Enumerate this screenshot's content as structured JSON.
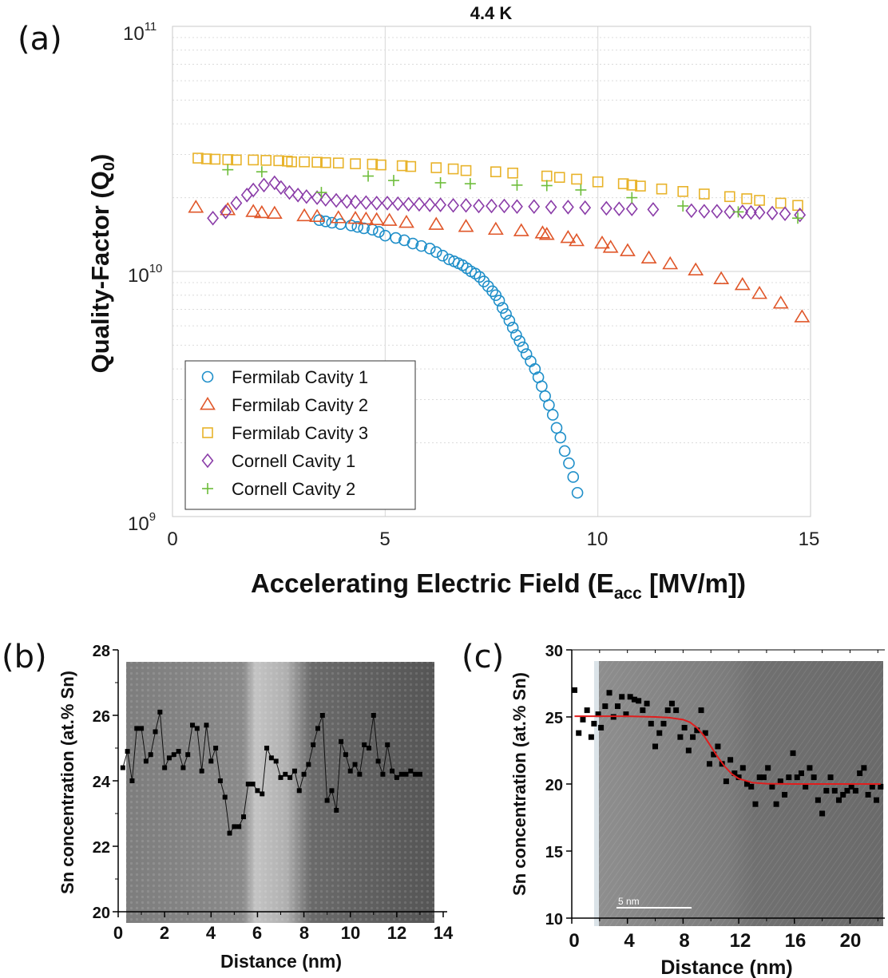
{
  "panel_labels": {
    "a": "(a)",
    "b": "(b)",
    "c": "(c)"
  },
  "colors": {
    "fermilab_1": "#1f8fc9",
    "fermilab_2": "#e0572a",
    "fermilab_3": "#e8b32a",
    "cornell_1": "#8a3ca8",
    "cornell_2": "#6dbd3a",
    "fit_line": "#e11d1d",
    "markers_bc": "#000000"
  },
  "chart_data": [
    {
      "id": "a",
      "type": "scatter",
      "title": "4.4 K",
      "xlabel": "Accelerating Electric Field (E",
      "xlabel_sub": "acc",
      "xlabel_tail": " [MV/m])",
      "ylabel": "Quality-Factor (Q",
      "ylabel_sub": "0",
      "ylabel_tail": ")",
      "xlim": [
        0,
        15
      ],
      "ylim": [
        1000000000.0,
        100000000000.0
      ],
      "yscale": "log",
      "grid": true,
      "x_ticks": [
        "0",
        "5",
        "10",
        "15"
      ],
      "y_ticks": [
        {
          "base": "10",
          "exp": "9"
        },
        {
          "base": "10",
          "exp": "10"
        },
        {
          "base": "10",
          "exp": "11"
        }
      ],
      "legend_position": "bottom-left",
      "series": [
        {
          "name": "Fermilab Cavity 1",
          "marker": "circle",
          "color_key": "fermilab_1",
          "x": [
            3.45,
            3.6,
            3.75,
            3.95,
            4.2,
            4.35,
            4.5,
            4.7,
            4.85,
            5.0,
            5.25,
            5.45,
            5.65,
            5.85,
            6.05,
            6.2,
            6.35,
            6.5,
            6.62,
            6.72,
            6.82,
            6.92,
            7.02,
            7.12,
            7.22,
            7.32,
            7.42,
            7.52,
            7.6,
            7.68,
            7.76,
            7.84,
            7.92,
            8.0,
            8.08,
            8.16,
            8.24,
            8.32,
            8.42,
            8.52,
            8.6,
            8.68,
            8.76,
            8.85,
            8.94,
            9.03,
            9.12,
            9.22,
            9.32,
            9.42,
            9.52
          ],
          "y": [
            16200000000.0,
            16000000000.0,
            15800000000.0,
            15600000000.0,
            15400000000.0,
            15200000000.0,
            15000000000.0,
            14800000000.0,
            14500000000.0,
            14000000000.0,
            13700000000.0,
            13400000000.0,
            13000000000.0,
            12700000000.0,
            12400000000.0,
            12000000000.0,
            11600000000.0,
            11200000000.0,
            11000000000.0,
            10800000000.0,
            10600000000.0,
            10300000000.0,
            10000000000.0,
            9800000000.0,
            9500000000.0,
            9100000000.0,
            8700000000.0,
            8300000000.0,
            8000000000.0,
            7600000000.0,
            7100000000.0,
            6700000000.0,
            6300000000.0,
            5900000000.0,
            5500000000.0,
            5200000000.0,
            4900000000.0,
            4600000000.0,
            4300000000.0,
            4000000000.0,
            3700000000.0,
            3400000000.0,
            3100000000.0,
            2850000000.0,
            2600000000.0,
            2300000000.0,
            2100000000.0,
            1850000000.0,
            1650000000.0,
            1450000000.0,
            1250000000.0
          ]
        },
        {
          "name": "Fermilab Cavity 2",
          "marker": "triangle",
          "color_key": "fermilab_2",
          "x": [
            0.55,
            1.3,
            1.9,
            2.1,
            2.4,
            3.1,
            3.4,
            3.9,
            4.3,
            4.55,
            4.8,
            5.1,
            5.5,
            6.2,
            6.9,
            7.6,
            8.2,
            8.7,
            8.8,
            9.3,
            9.5,
            10.1,
            10.3,
            10.7,
            11.2,
            11.7,
            12.3,
            12.9,
            13.4,
            13.8,
            14.3,
            14.8
          ],
          "y": [
            18200000000.0,
            17800000000.0,
            17500000000.0,
            17300000000.0,
            17200000000.0,
            16800000000.0,
            16700000000.0,
            16500000000.0,
            16400000000.0,
            16300000000.0,
            16200000000.0,
            16100000000.0,
            15800000000.0,
            15500000000.0,
            15200000000.0,
            14800000000.0,
            14600000000.0,
            14300000000.0,
            14100000000.0,
            13700000000.0,
            13300000000.0,
            13000000000.0,
            12500000000.0,
            12100000000.0,
            11300000000.0,
            10700000000.0,
            10100000000.0,
            9300000000.0,
            8800000000.0,
            8100000000.0,
            7400000000.0,
            6500000000.0
          ]
        },
        {
          "name": "Fermilab Cavity 3",
          "marker": "square",
          "color_key": "fermilab_3",
          "x": [
            0.6,
            0.8,
            1.0,
            1.3,
            1.5,
            1.9,
            2.2,
            2.5,
            2.7,
            2.8,
            3.1,
            3.4,
            3.6,
            3.9,
            4.3,
            4.7,
            4.9,
            5.4,
            5.6,
            6.2,
            6.6,
            6.9,
            7.6,
            8.0,
            8.8,
            9.1,
            9.5,
            10.0,
            10.6,
            10.8,
            11.0,
            11.5,
            12.0,
            12.5,
            13.1,
            13.5,
            13.8,
            14.3,
            14.7
          ],
          "y": [
            29000000000.0,
            28800000000.0,
            28700000000.0,
            28600000000.0,
            28500000000.0,
            28500000000.0,
            28400000000.0,
            28300000000.0,
            28200000000.0,
            28000000000.0,
            28000000000.0,
            27900000000.0,
            27800000000.0,
            27700000000.0,
            27500000000.0,
            27400000000.0,
            27200000000.0,
            27000000000.0,
            26800000000.0,
            26500000000.0,
            26200000000.0,
            25800000000.0,
            25500000000.0,
            25200000000.0,
            24500000000.0,
            24200000000.0,
            23800000000.0,
            23200000000.0,
            22800000000.0,
            22500000000.0,
            22300000000.0,
            21700000000.0,
            21200000000.0,
            20700000000.0,
            20200000000.0,
            19800000000.0,
            19500000000.0,
            19000000000.0,
            18600000000.0
          ]
        },
        {
          "name": "Cornell Cavity 1",
          "marker": "diamond",
          "color_key": "cornell_1",
          "x": [
            0.95,
            1.25,
            1.5,
            1.75,
            1.9,
            2.15,
            2.4,
            2.55,
            2.75,
            2.95,
            3.15,
            3.4,
            3.6,
            3.85,
            4.1,
            4.3,
            4.55,
            4.8,
            5.05,
            5.3,
            5.55,
            5.8,
            6.05,
            6.3,
            6.6,
            6.9,
            7.2,
            7.5,
            7.8,
            8.1,
            8.5,
            8.9,
            9.3,
            9.7,
            10.2,
            10.5,
            10.8,
            11.3,
            12.2,
            12.5,
            12.8,
            13.1,
            13.4,
            13.6,
            13.8,
            14.1,
            14.4,
            14.75
          ],
          "y": [
            16500000000.0,
            17500000000.0,
            19000000000.0,
            20500000000.0,
            21500000000.0,
            22500000000.0,
            23000000000.0,
            22000000000.0,
            21000000000.0,
            20500000000.0,
            20200000000.0,
            20000000000.0,
            19700000000.0,
            19500000000.0,
            19300000000.0,
            19200000000.0,
            19100000000.0,
            19000000000.0,
            19000000000.0,
            18900000000.0,
            18800000000.0,
            18800000000.0,
            18700000000.0,
            18700000000.0,
            18600000000.0,
            18600000000.0,
            18500000000.0,
            18500000000.0,
            18500000000.0,
            18400000000.0,
            18400000000.0,
            18300000000.0,
            18300000000.0,
            18200000000.0,
            18100000000.0,
            18000000000.0,
            18000000000.0,
            17900000000.0,
            17700000000.0,
            17600000000.0,
            17600000000.0,
            17500000000.0,
            17500000000.0,
            17400000000.0,
            17400000000.0,
            17300000000.0,
            17200000000.0,
            17000000000.0
          ]
        },
        {
          "name": "Cornell Cavity 2",
          "marker": "plus",
          "color_key": "cornell_2",
          "x": [
            1.3,
            2.1,
            3.5,
            4.6,
            5.2,
            6.3,
            7.0,
            8.1,
            8.8,
            9.6,
            10.8,
            12.0,
            13.3,
            14.7
          ],
          "y": [
            26000000000.0,
            25500000000.0,
            21000000000.0,
            24500000000.0,
            23500000000.0,
            23000000000.0,
            22800000000.0,
            22500000000.0,
            22400000000.0,
            21500000000.0,
            20000000000.0,
            18500000000.0,
            17500000000.0,
            16500000000.0
          ]
        }
      ]
    },
    {
      "id": "b",
      "type": "line",
      "xlabel": "Distance (nm)",
      "ylabel": "Sn concentration (at.% Sn)",
      "xlim": [
        0,
        14
      ],
      "ylim": [
        20,
        28
      ],
      "x_ticks": [
        "0",
        "2",
        "4",
        "6",
        "8",
        "10",
        "12",
        "14"
      ],
      "y_ticks": [
        "20",
        "22",
        "24",
        "26",
        "28"
      ],
      "series": [
        {
          "marker": "square",
          "x": [
            0.2,
            0.4,
            0.6,
            0.8,
            1.0,
            1.2,
            1.4,
            1.6,
            1.8,
            2.0,
            2.2,
            2.4,
            2.6,
            2.8,
            3.0,
            3.2,
            3.4,
            3.6,
            3.8,
            4.0,
            4.2,
            4.4,
            4.6,
            4.8,
            5.0,
            5.2,
            5.4,
            5.6,
            5.8,
            6.0,
            6.2,
            6.4,
            6.6,
            6.8,
            7.0,
            7.2,
            7.4,
            7.6,
            7.8,
            8.0,
            8.2,
            8.4,
            8.6,
            8.8,
            9.0,
            9.2,
            9.4,
            9.6,
            9.8,
            10.0,
            10.2,
            10.4,
            10.6,
            10.8,
            11.0,
            11.2,
            11.4,
            11.6,
            11.8,
            12.0,
            12.2,
            12.4,
            12.6,
            12.8,
            13.0
          ],
          "y": [
            24.4,
            24.9,
            24.0,
            25.6,
            25.6,
            24.6,
            24.8,
            25.5,
            26.1,
            24.4,
            24.7,
            24.8,
            24.9,
            24.4,
            24.8,
            25.7,
            25.6,
            24.3,
            25.7,
            24.6,
            25.0,
            24.0,
            23.5,
            22.4,
            22.6,
            22.6,
            22.9,
            23.9,
            23.9,
            23.7,
            23.6,
            25.0,
            24.7,
            24.6,
            24.1,
            24.2,
            24.1,
            24.3,
            23.7,
            24.2,
            24.5,
            25.1,
            25.6,
            26.0,
            23.4,
            23.7,
            23.1,
            25.2,
            24.8,
            24.3,
            24.5,
            24.2,
            25.1,
            25.0,
            26.0,
            24.6,
            24.2,
            25.1,
            24.3,
            24.1,
            24.2,
            24.2,
            24.3,
            24.2,
            24.2
          ]
        }
      ]
    },
    {
      "id": "c",
      "type": "scatter",
      "xlabel": "Distance (nm)",
      "ylabel": "Sn concentration (at.% Sn)",
      "xlim": [
        0,
        22.5
      ],
      "ylim": [
        10,
        30
      ],
      "x_ticks": [
        "0",
        "4",
        "8",
        "12",
        "16",
        "20"
      ],
      "y_ticks": [
        "10",
        "15",
        "20",
        "25",
        "30"
      ],
      "scale_bar_label": "5  nm",
      "series": [
        {
          "marker": "square",
          "x": [
            0.2,
            0.5,
            0.8,
            1.1,
            1.4,
            1.6,
            1.9,
            2.1,
            2.4,
            2.7,
            3.0,
            3.3,
            3.6,
            3.9,
            4.2,
            4.5,
            4.8,
            5.1,
            5.4,
            5.7,
            6.0,
            6.3,
            6.6,
            6.9,
            7.2,
            7.5,
            7.8,
            8.1,
            8.4,
            8.7,
            9.0,
            9.3,
            9.6,
            9.9,
            10.2,
            10.5,
            10.8,
            11.1,
            11.4,
            11.7,
            12.0,
            12.3,
            12.6,
            12.9,
            13.2,
            13.5,
            13.8,
            14.1,
            14.4,
            14.7,
            15.0,
            15.3,
            15.6,
            15.9,
            16.2,
            16.5,
            16.8,
            17.1,
            17.4,
            17.7,
            18.0,
            18.3,
            18.6,
            18.9,
            19.2,
            19.5,
            19.8,
            20.1,
            20.4,
            20.7,
            21.0,
            21.3,
            21.6,
            21.9,
            22.2
          ],
          "y": [
            27.0,
            23.8,
            24.8,
            25.5,
            23.5,
            24.5,
            25.2,
            24.2,
            25.8,
            26.8,
            25.0,
            25.8,
            26.5,
            25.2,
            26.5,
            26.3,
            26.2,
            25.5,
            26.0,
            24.5,
            22.8,
            23.8,
            24.5,
            25.5,
            26.0,
            25.5,
            23.5,
            24.2,
            22.5,
            23.5,
            24.0,
            25.5,
            23.8,
            21.5,
            22.2,
            22.8,
            21.5,
            20.2,
            21.8,
            20.8,
            20.5,
            21.2,
            20.0,
            19.8,
            18.5,
            20.5,
            20.5,
            21.2,
            19.8,
            18.5,
            20.2,
            19.2,
            20.5,
            22.3,
            20.5,
            20.8,
            19.8,
            21.2,
            20.5,
            18.8,
            17.8,
            19.5,
            20.5,
            19.5,
            18.8,
            19.2,
            19.5,
            19.8,
            19.5,
            20.8,
            21.2,
            19.2,
            19.8,
            18.8,
            19.8
          ]
        },
        {
          "name": "",
          "type": "line",
          "style": "sigmoid fit",
          "x": [
            0.2,
            2,
            4,
            6,
            7,
            8,
            8.5,
            9,
            9.5,
            10,
            10.5,
            11,
            11.5,
            12,
            13,
            14,
            16,
            18,
            20,
            22.2
          ],
          "y": [
            25.05,
            25.05,
            25.05,
            25.0,
            24.95,
            24.8,
            24.6,
            24.2,
            23.6,
            22.8,
            22.0,
            21.3,
            20.75,
            20.4,
            20.1,
            20.02,
            20.0,
            20.0,
            20.0,
            20.0
          ]
        }
      ]
    }
  ]
}
